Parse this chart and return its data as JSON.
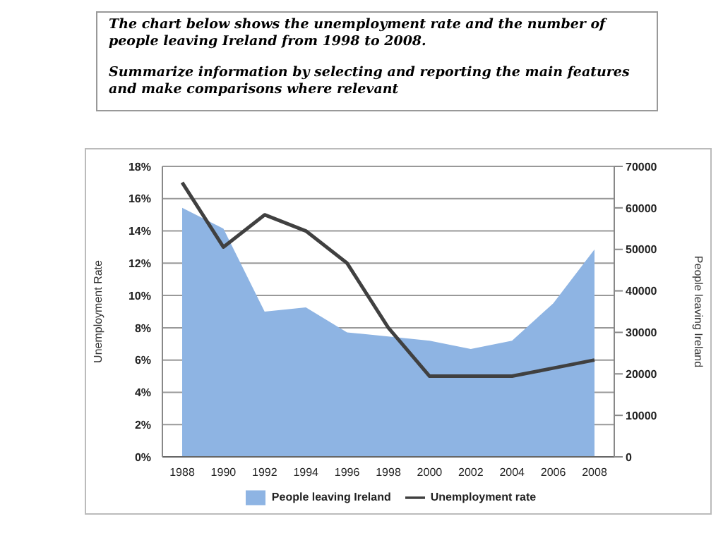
{
  "chart_data": {
    "type": "area",
    "title": "The chart below shows the unemployment rate and the number of people leaving Ireland from 1998 to 2008.",
    "subtitle": "Summarize information by selecting and reporting the main features and make comparisons where relevant",
    "ylabel": "Unemployment Rate",
    "y2label": "People leaving Ireland",
    "categories": [
      "1988",
      "1990",
      "1992",
      "1994",
      "1996",
      "1998",
      "2000",
      "2002",
      "2004",
      "2006",
      "2008"
    ],
    "series": [
      {
        "name": "People leaving  Ireland",
        "axis": "y2",
        "color": "#8eb4e3",
        "values": [
          60000,
          55000,
          35000,
          36000,
          30000,
          29000,
          28000,
          26000,
          28000,
          37000,
          50000
        ]
      },
      {
        "name": "Unemployment rate",
        "type": "line",
        "color": "#404040",
        "values": [
          17,
          13,
          15,
          14,
          12,
          8,
          5,
          5,
          5,
          5.5,
          6
        ]
      }
    ],
    "ylim": [
      0,
      18
    ],
    "yticks": [
      {
        "value": 0,
        "label": "0%"
      },
      {
        "value": 2,
        "label": "2%"
      },
      {
        "value": 4,
        "label": "4%"
      },
      {
        "value": 6,
        "label": "6%"
      },
      {
        "value": 8,
        "label": "8%"
      },
      {
        "value": 10,
        "label": "10%"
      },
      {
        "value": 12,
        "label": "12%"
      },
      {
        "value": 14,
        "label": "14%"
      },
      {
        "value": 16,
        "label": "16%"
      },
      {
        "value": 18,
        "label": "18%"
      }
    ],
    "y2lim": [
      0,
      70000
    ],
    "y2ticks": [
      0,
      10000,
      20000,
      30000,
      40000,
      50000,
      60000,
      70000
    ],
    "grid": "y",
    "legend": "bottom",
    "marker": "none",
    "line_style": "solid"
  }
}
